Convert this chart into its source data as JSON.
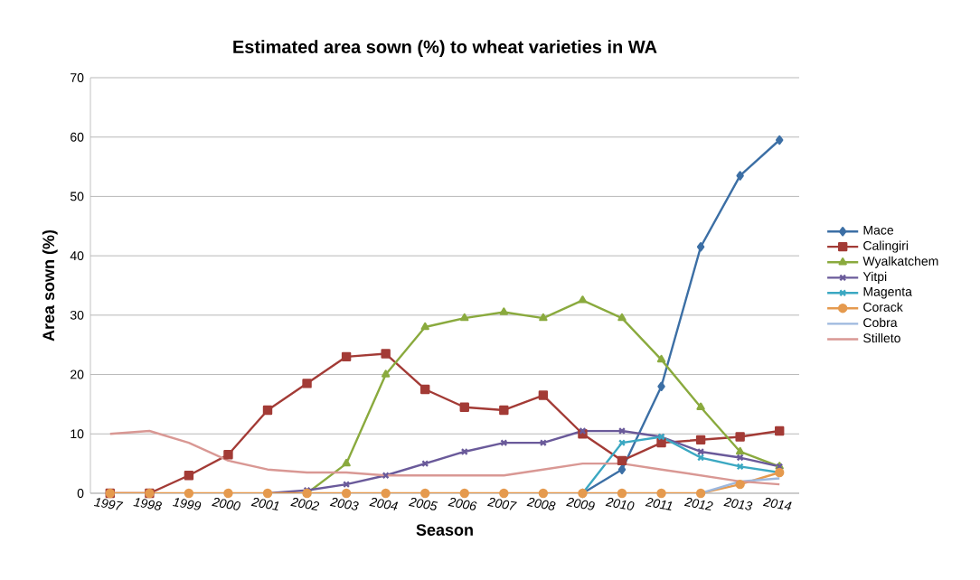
{
  "chart_data": {
    "type": "line",
    "title": "Estimated area sown (%) to wheat varieties in WA",
    "xlabel": "Season",
    "ylabel": "Area sown (%)",
    "categories": [
      "1997",
      "1998",
      "1999",
      "2000",
      "2001",
      "2002",
      "2003",
      "2004",
      "2005",
      "2006",
      "2007",
      "2008",
      "2009",
      "2010",
      "2011",
      "2012",
      "2013",
      "2014"
    ],
    "series": [
      {
        "name": "Mace",
        "color": "#3c6fa5",
        "marker": "diamond",
        "values": [
          null,
          null,
          null,
          null,
          null,
          null,
          null,
          null,
          null,
          null,
          null,
          null,
          0,
          4,
          18,
          41.5,
          53.5,
          59.5
        ]
      },
      {
        "name": "Calingiri",
        "color": "#a33b36",
        "marker": "square",
        "values": [
          0,
          0,
          3,
          6.5,
          14,
          18.5,
          23,
          23.5,
          17.5,
          14.5,
          14,
          16.5,
          10,
          5.5,
          8.5,
          9,
          9.5,
          10.5
        ]
      },
      {
        "name": "Wyalkatchem",
        "color": "#8aaa3e",
        "marker": "triangle",
        "values": [
          null,
          null,
          null,
          null,
          null,
          0,
          5,
          20,
          28,
          29.5,
          30.5,
          29.5,
          32.5,
          29.5,
          22.5,
          14.5,
          7,
          4.5
        ]
      },
      {
        "name": "Yitpi",
        "color": "#6a5a9a",
        "marker": "cross",
        "values": [
          null,
          null,
          null,
          null,
          0,
          0.5,
          1.5,
          3,
          5,
          7,
          8.5,
          8.5,
          10.5,
          10.5,
          9.5,
          7,
          6,
          4.5
        ]
      },
      {
        "name": "Magenta",
        "color": "#3ba8c2",
        "marker": "cross",
        "values": [
          null,
          null,
          null,
          null,
          null,
          null,
          null,
          null,
          null,
          null,
          null,
          null,
          0,
          8.5,
          9.5,
          6,
          4.5,
          3.5
        ]
      },
      {
        "name": "Corack",
        "color": "#e59a4e",
        "marker": "circle",
        "values": [
          0,
          0,
          0,
          0,
          0,
          0,
          0,
          0,
          0,
          0,
          0,
          0,
          0,
          0,
          0,
          0,
          1.5,
          3.5
        ]
      },
      {
        "name": "Cobra",
        "color": "#9db8de",
        "marker": "none",
        "values": [
          null,
          null,
          null,
          null,
          null,
          null,
          null,
          null,
          null,
          null,
          null,
          null,
          null,
          null,
          null,
          0,
          2,
          2.5
        ]
      },
      {
        "name": "Stilleto",
        "color": "#d99894",
        "marker": "none",
        "values": [
          10,
          10.5,
          8.5,
          5.5,
          4,
          3.5,
          3.5,
          3,
          3,
          3,
          3,
          4,
          5,
          5,
          4,
          3,
          2,
          1.5
        ]
      }
    ],
    "ylim": [
      0,
      70
    ],
    "yticks": [
      0,
      10,
      20,
      30,
      40,
      50,
      60,
      70
    ],
    "grid": "y",
    "legend": "right",
    "line_style": "solid"
  }
}
